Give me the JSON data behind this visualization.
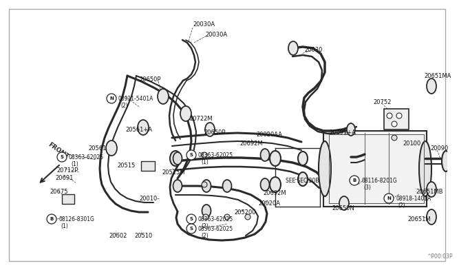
{
  "bg_color": "#ffffff",
  "fig_width": 6.4,
  "fig_height": 3.72,
  "watermark": "^P00:03P"
}
